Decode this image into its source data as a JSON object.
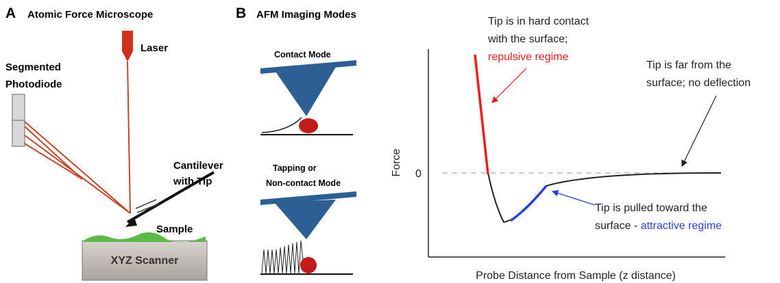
{
  "panel_a": {
    "letter": "A",
    "title": "Atomic Force Microscope",
    "laser": "Laser",
    "photodiode": [
      "Segmented",
      "Photodiode"
    ],
    "cantilever": [
      "Cantilever",
      "with Tip"
    ],
    "sample": "Sample",
    "scanner": "XYZ Scanner"
  },
  "panel_b": {
    "letter": "B",
    "title": "AFM Imaging Modes",
    "contact_mode": "Contact Mode",
    "tapping_mode": [
      "Tapping or",
      "Non-contact Mode"
    ]
  },
  "force_plot": {
    "y_label": "Force",
    "zero_label": "0",
    "x_label": "Probe Distance from Sample (z distance)",
    "repulsive_note": {
      "lines": [
        "Tip is in hard contact",
        "with the surface;"
      ],
      "highlight": "repulsive regime"
    },
    "far_note": [
      "Tip is far from the",
      "surface; no deflection"
    ],
    "attractive_note": {
      "line": "Tip is pulled toward the",
      "prefix": "surface -",
      "highlight": "attractive regime"
    }
  }
}
